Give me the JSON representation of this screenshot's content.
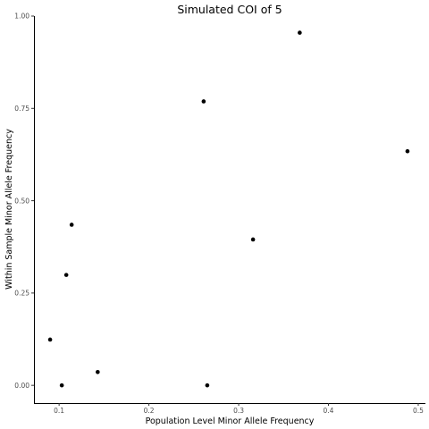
{
  "chart_data": {
    "type": "scatter",
    "title": "Simulated COI of 5",
    "xlabel": "Population Level Minor Allele Frequency",
    "ylabel": "Within Sample Minor Allele Frequency",
    "xlim": [
      0.072,
      0.508
    ],
    "ylim": [
      -0.048,
      1.0
    ],
    "x_ticks": [
      0.1,
      0.2,
      0.3,
      0.4,
      0.5
    ],
    "x_tick_labels": [
      "0.1",
      "0.2",
      "0.3",
      "0.4",
      "0.5"
    ],
    "y_ticks": [
      0.0,
      0.25,
      0.5,
      0.75,
      1.0
    ],
    "y_tick_labels": [
      "0.00",
      "0.25",
      "0.50",
      "0.75",
      "1.00"
    ],
    "grid": false,
    "points": [
      {
        "x": 0.09,
        "y": 0.124
      },
      {
        "x": 0.103,
        "y": 0.0
      },
      {
        "x": 0.108,
        "y": 0.299
      },
      {
        "x": 0.114,
        "y": 0.435
      },
      {
        "x": 0.143,
        "y": 0.036
      },
      {
        "x": 0.261,
        "y": 0.769
      },
      {
        "x": 0.265,
        "y": 0.0
      },
      {
        "x": 0.316,
        "y": 0.395
      },
      {
        "x": 0.368,
        "y": 0.955
      },
      {
        "x": 0.488,
        "y": 0.634
      }
    ],
    "point_color": "#000000"
  }
}
